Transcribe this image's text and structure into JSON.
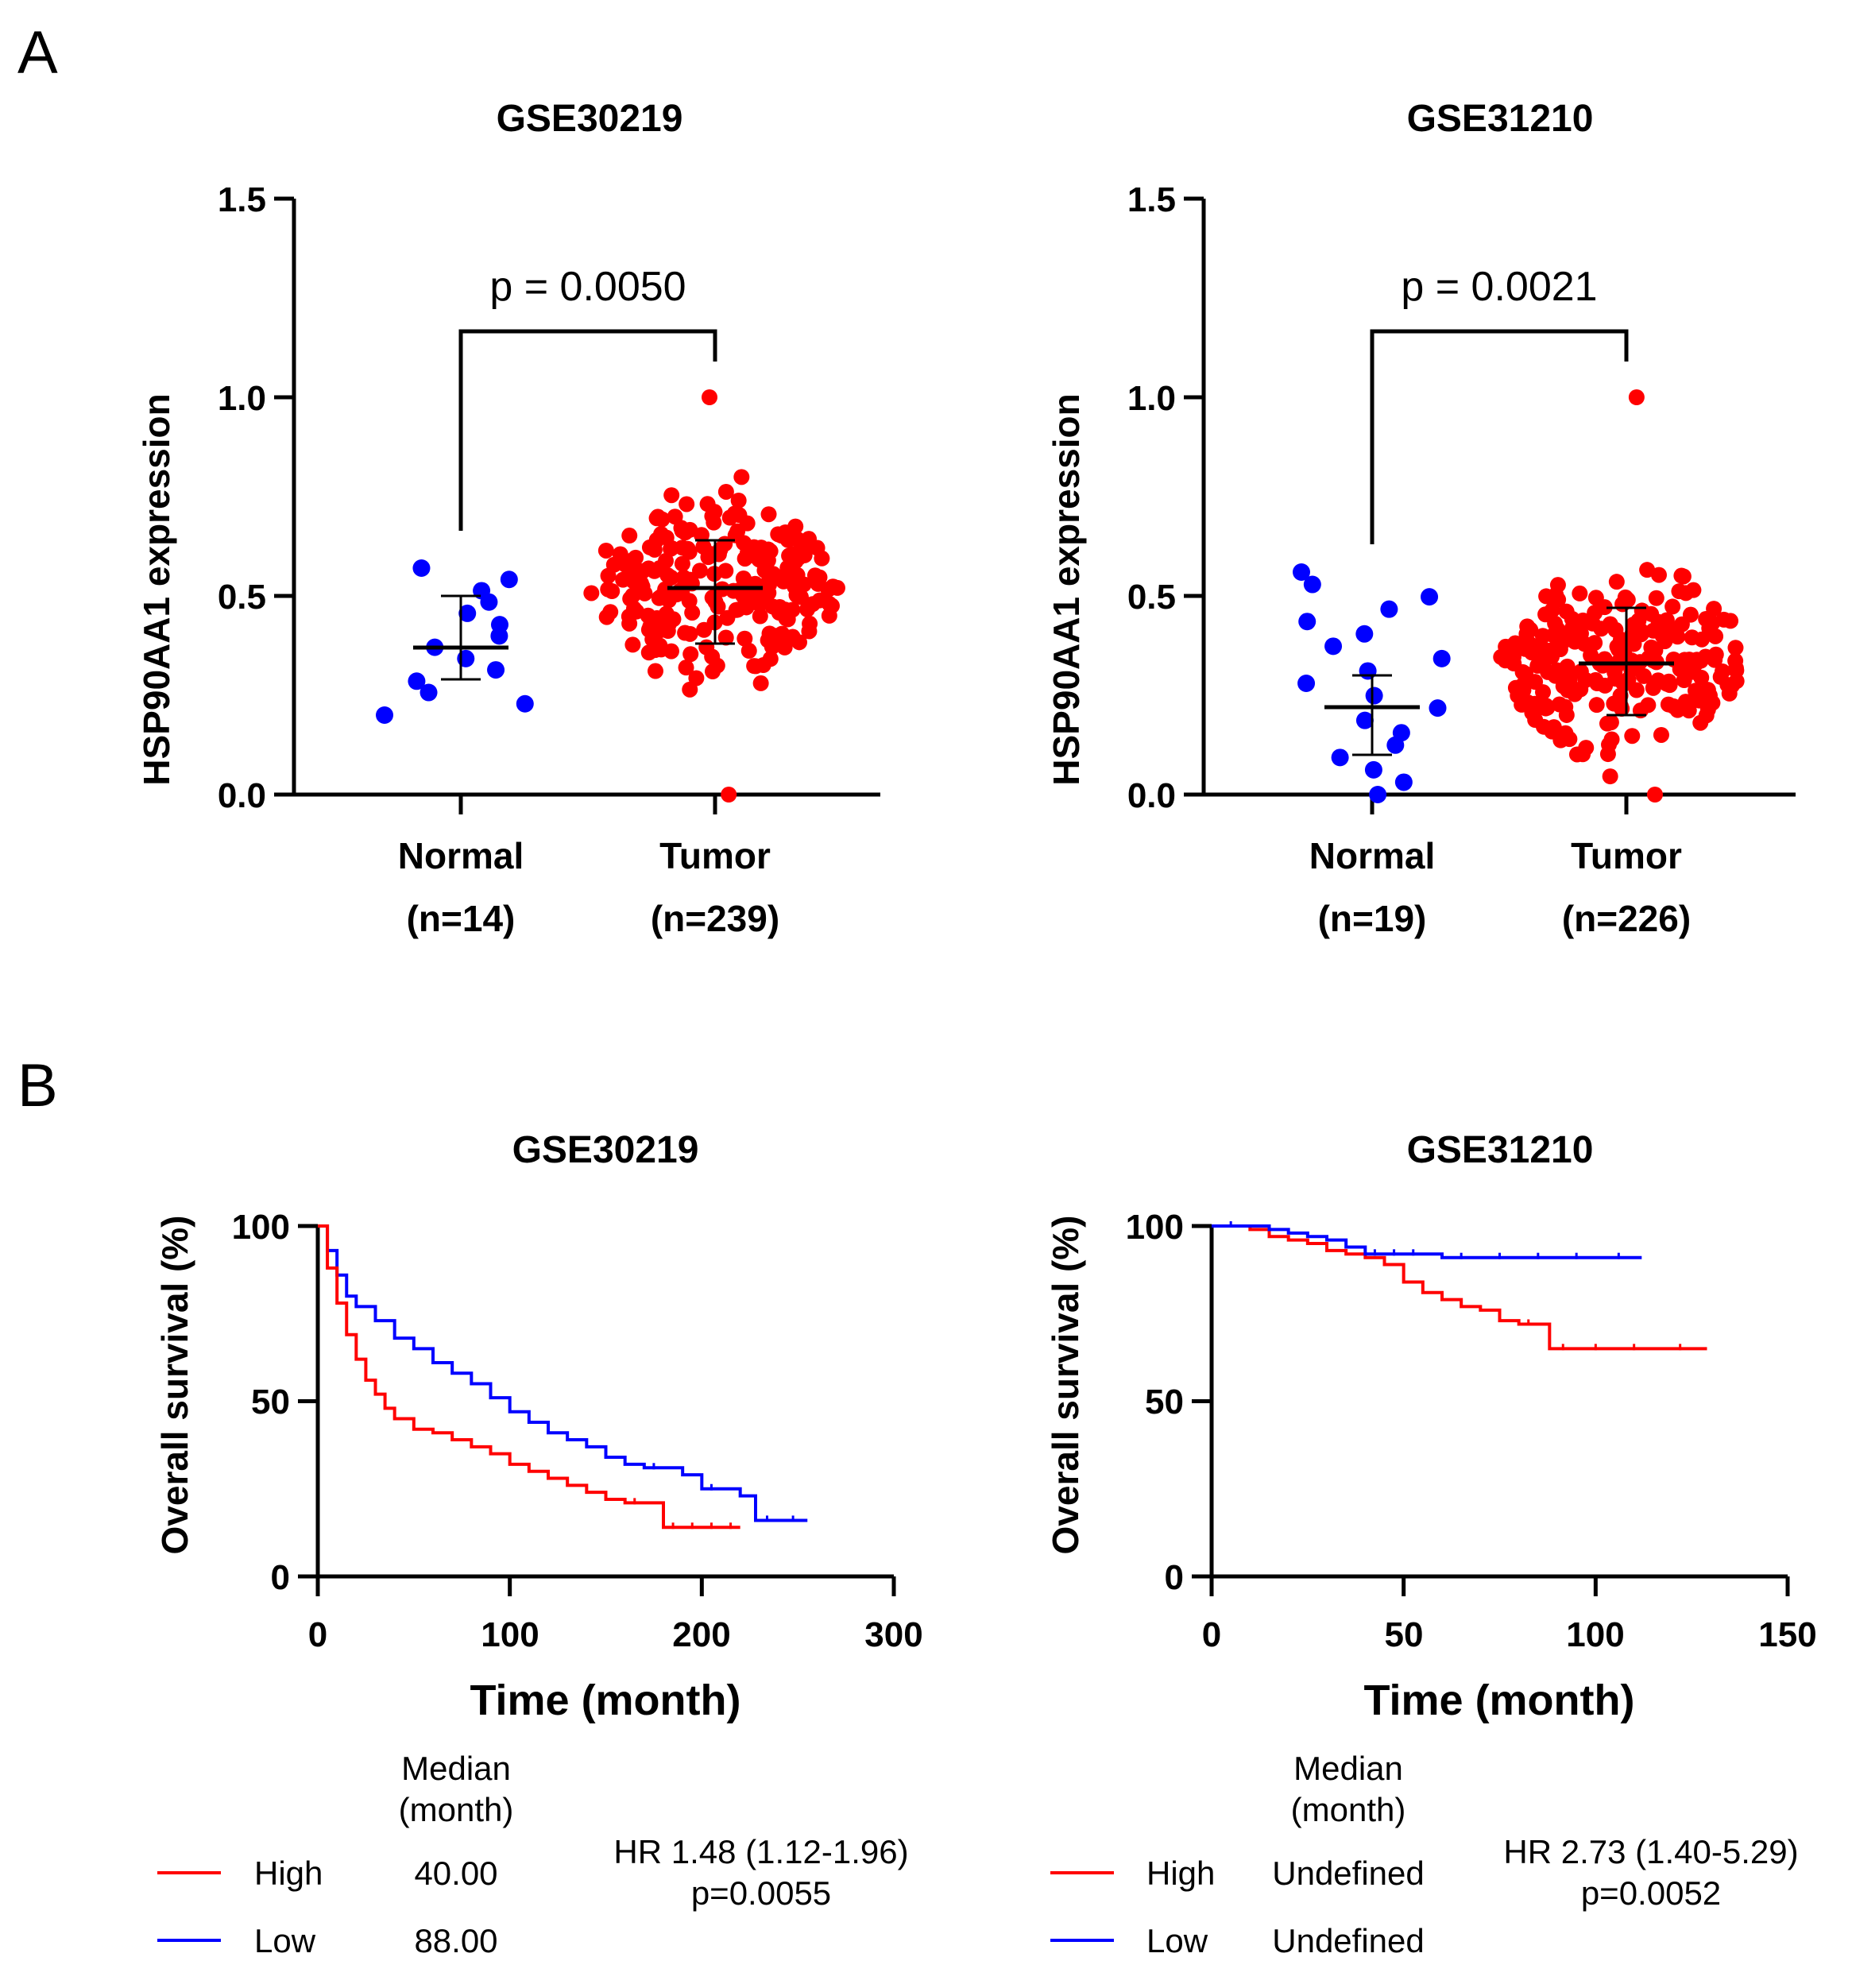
{
  "panel_labels": {
    "a": "A",
    "b": "B"
  },
  "colors": {
    "high": "#ff0000",
    "low": "#0000ff",
    "normal": "#0000ff",
    "tumor": "#ff0000",
    "axis": "#000000"
  },
  "chart_data": [
    {
      "id": "scatterA1",
      "type": "scatter",
      "panel": "A",
      "title": "GSE30219",
      "ylabel": "HSP90AA1 expression",
      "ylim": [
        0,
        1.5
      ],
      "yticks": [
        "0.0",
        "0.5",
        "1.0",
        "1.5"
      ],
      "groups": [
        {
          "label": "Normal",
          "n_label": "(n=14)",
          "mean": 0.37,
          "sd_low": 0.29,
          "sd_high": 0.5,
          "min": 0.2,
          "max": 0.57,
          "n": 14
        },
        {
          "label": "Tumor",
          "n_label": "(n=239)",
          "mean": 0.52,
          "sd_low": 0.38,
          "sd_high": 0.64,
          "min": 0.0,
          "max": 1.0,
          "n": 239
        }
      ],
      "pvalue": "p = 0.0050"
    },
    {
      "id": "scatterA2",
      "type": "scatter",
      "panel": "A",
      "title": "GSE31210",
      "ylabel": "HSP90AA1 expression",
      "ylim": [
        0,
        1.5
      ],
      "yticks": [
        "0.0",
        "0.5",
        "1.0",
        "1.5"
      ],
      "groups": [
        {
          "label": "Normal",
          "n_label": "(n=19)",
          "mean": 0.22,
          "sd_low": 0.1,
          "sd_high": 0.3,
          "min": 0.0,
          "max": 0.56,
          "n": 19
        },
        {
          "label": "Tumor",
          "n_label": "(n=226)",
          "mean": 0.33,
          "sd_low": 0.2,
          "sd_high": 0.47,
          "min": 0.0,
          "max": 1.0,
          "n": 226
        }
      ],
      "pvalue": "p = 0.0021"
    },
    {
      "id": "kmB1",
      "type": "line",
      "panel": "B",
      "title": "GSE30219",
      "xlabel": "Time (month)",
      "ylabel": "Overall survival (%)",
      "xlim": [
        0,
        300
      ],
      "ylim": [
        0,
        100
      ],
      "xticks": [
        "0",
        "100",
        "200",
        "300"
      ],
      "yticks": [
        "0",
        "50",
        "100"
      ],
      "series": [
        {
          "name": "High",
          "median": "40.00",
          "x": [
            0,
            5,
            10,
            15,
            20,
            25,
            30,
            35,
            40,
            50,
            60,
            70,
            80,
            90,
            100,
            110,
            120,
            130,
            140,
            150,
            160,
            170,
            180,
            190,
            200,
            210,
            220
          ],
          "y": [
            100,
            88,
            78,
            69,
            62,
            56,
            52,
            48,
            45,
            42,
            41,
            39,
            37,
            35,
            32,
            30,
            28,
            26,
            24,
            22,
            21,
            21,
            14,
            14,
            14,
            14,
            14
          ]
        },
        {
          "name": "Low",
          "median": "88.00",
          "x": [
            0,
            5,
            10,
            15,
            20,
            30,
            40,
            50,
            60,
            70,
            80,
            90,
            100,
            110,
            120,
            130,
            140,
            150,
            160,
            170,
            180,
            190,
            200,
            210,
            220,
            228,
            240,
            255
          ],
          "y": [
            100,
            93,
            86,
            80,
            77,
            73,
            68,
            65,
            61,
            58,
            55,
            51,
            47,
            44,
            41,
            39,
            37,
            34,
            32,
            31,
            31,
            29,
            25,
            25,
            23,
            16,
            16,
            16
          ]
        }
      ],
      "legend": {
        "header": [
          "Median",
          "(month)"
        ]
      },
      "hr": "HR 1.48 (1.12-1.96)",
      "pvalue": "p=0.0055"
    },
    {
      "id": "kmB2",
      "type": "line",
      "panel": "B",
      "title": "GSE31210",
      "xlabel": "Time (month)",
      "ylabel": "Overall survival (%)",
      "xlim": [
        0,
        150
      ],
      "ylim": [
        0,
        100
      ],
      "xticks": [
        "0",
        "50",
        "100",
        "150"
      ],
      "yticks": [
        "0",
        "50",
        "100"
      ],
      "series": [
        {
          "name": "High",
          "median": "Undefined",
          "x": [
            0,
            10,
            15,
            20,
            25,
            30,
            35,
            40,
            45,
            50,
            55,
            60,
            65,
            70,
            75,
            80,
            85,
            88,
            95,
            105,
            115,
            129
          ],
          "y": [
            100,
            99,
            97,
            96,
            95,
            93,
            92,
            91,
            89,
            84,
            81,
            79,
            77,
            76,
            73,
            72,
            72,
            65,
            65,
            65,
            65,
            65
          ]
        },
        {
          "name": "Low",
          "median": "Undefined",
          "x": [
            0,
            10,
            15,
            20,
            25,
            30,
            35,
            40,
            45,
            50,
            55,
            60,
            70,
            80,
            90,
            100,
            112
          ],
          "y": [
            100,
            100,
            99,
            98,
            97,
            96,
            94,
            92,
            92,
            92,
            92,
            91,
            91,
            91,
            91,
            91,
            91
          ]
        }
      ],
      "legend": {
        "header": [
          "Median",
          "(month)"
        ]
      },
      "hr": "HR 2.73 (1.40-5.29)",
      "pvalue": "p=0.0052"
    }
  ]
}
